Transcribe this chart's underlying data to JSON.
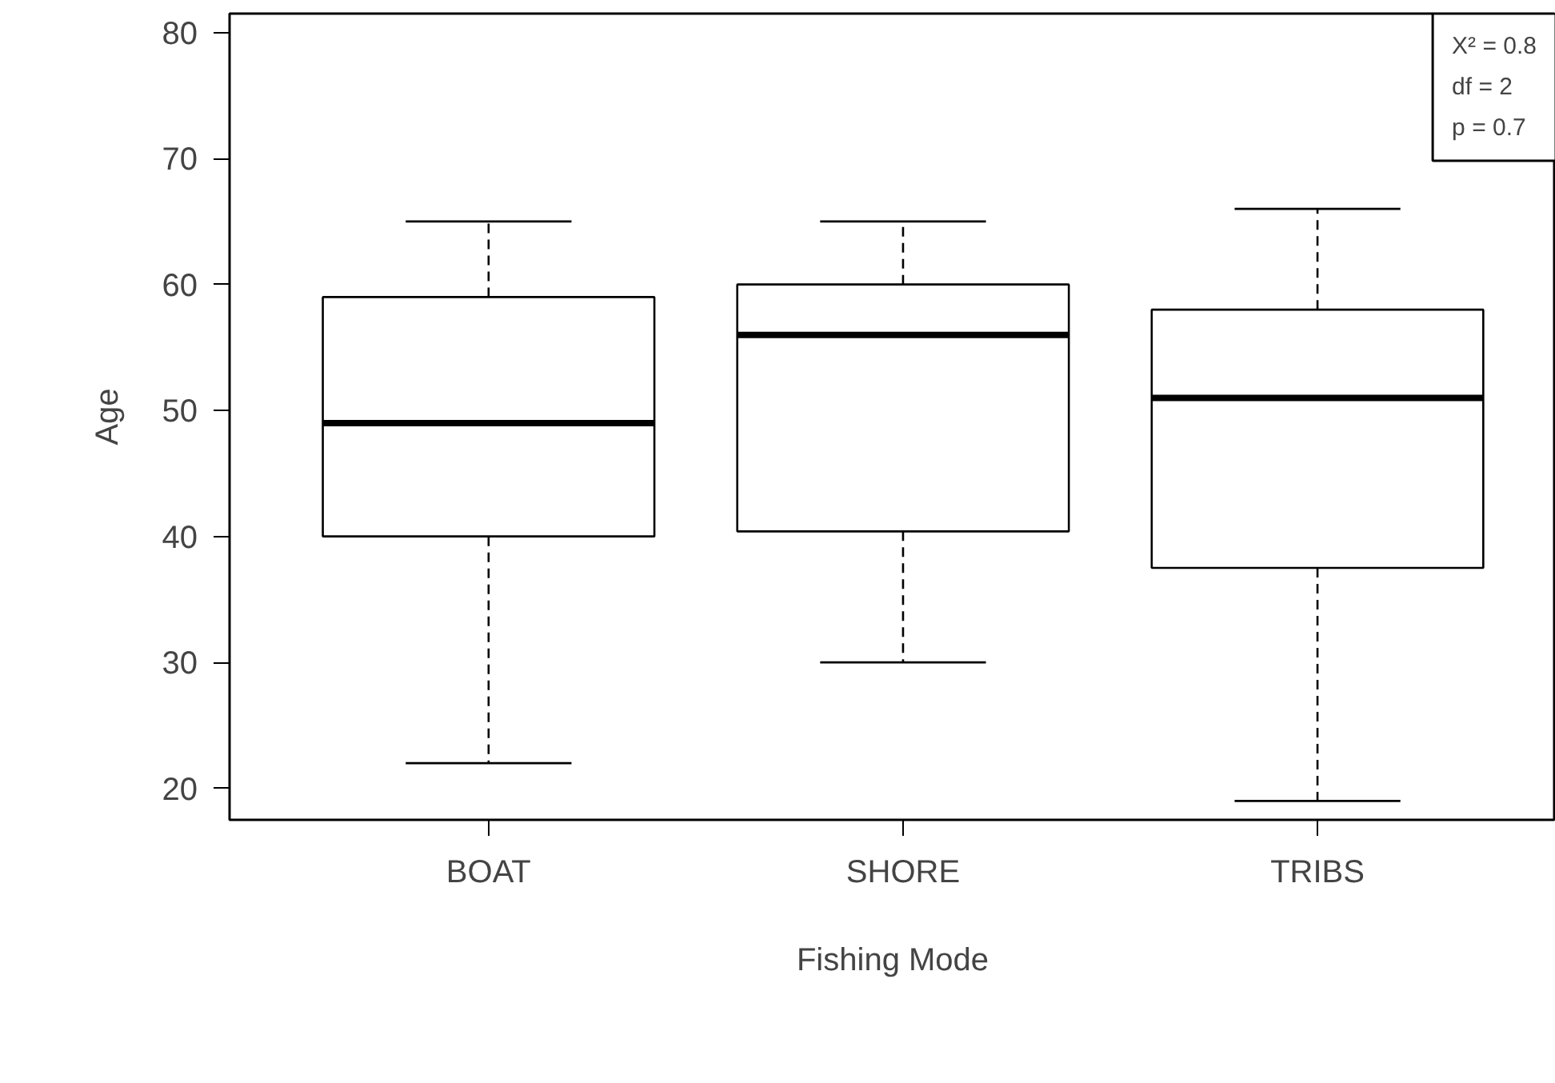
{
  "chart_data": {
    "type": "box",
    "xlabel": "Fishing Mode",
    "ylabel": "Age",
    "categories": [
      "BOAT",
      "SHORE",
      "TRIBS"
    ],
    "boxes": [
      {
        "low": 22,
        "q1": 40,
        "median": 49,
        "q3": 59,
        "high": 65
      },
      {
        "low": 30,
        "q1": 40.4,
        "median": 56,
        "q3": 60,
        "high": 65
      },
      {
        "low": 19,
        "q1": 37.5,
        "median": 51,
        "q3": 58,
        "high": 66
      }
    ],
    "ylim": [
      17.5,
      81.5
    ],
    "yticks": [
      20,
      30,
      40,
      50,
      60,
      70,
      80
    ],
    "grid": false,
    "annotations": [
      "X² = 0.8",
      "df = 2",
      "p = 0.7"
    ]
  }
}
